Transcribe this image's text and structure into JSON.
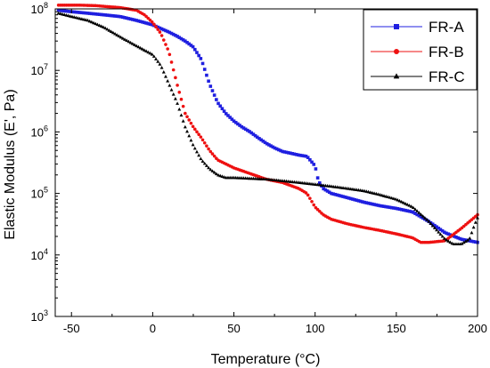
{
  "chart_data": {
    "type": "scatter",
    "xlabel": "Temperature (°C)",
    "ylabel": "Elastic Modulus (E', Pa)",
    "xlim": [
      -60,
      200
    ],
    "ylim": [
      1000,
      100000000
    ],
    "yscale": "log",
    "x_ticks": [
      -50,
      0,
      50,
      100,
      150,
      200
    ],
    "x_tick_labels": [
      "-50",
      "0",
      "50",
      "100",
      "150",
      "200"
    ],
    "y_ticks": [
      1000,
      10000,
      100000,
      1000000,
      10000000,
      100000000
    ],
    "y_tick_labels": [
      {
        "base": "10",
        "exp": "3"
      },
      {
        "base": "10",
        "exp": "4"
      },
      {
        "base": "10",
        "exp": "5"
      },
      {
        "base": "10",
        "exp": "6"
      },
      {
        "base": "10",
        "exp": "7"
      },
      {
        "base": "10",
        "exp": "8"
      }
    ],
    "grid": false,
    "legend_position": "top-right",
    "series": [
      {
        "name": "FR-A",
        "color": "#1f1fe0",
        "marker": "square",
        "points": [
          [
            -58,
            95000000
          ],
          [
            -50,
            90000000
          ],
          [
            -40,
            85000000
          ],
          [
            -30,
            80000000
          ],
          [
            -20,
            75000000
          ],
          [
            -10,
            65000000
          ],
          [
            0,
            55000000
          ],
          [
            5,
            48000000
          ],
          [
            10,
            42000000
          ],
          [
            15,
            36000000
          ],
          [
            20,
            30000000
          ],
          [
            25,
            24000000
          ],
          [
            30,
            15000000
          ],
          [
            35,
            6000000
          ],
          [
            40,
            3000000
          ],
          [
            45,
            2000000
          ],
          [
            50,
            1500000
          ],
          [
            55,
            1200000
          ],
          [
            60,
            1000000
          ],
          [
            65,
            800000
          ],
          [
            70,
            650000
          ],
          [
            75,
            550000
          ],
          [
            80,
            480000
          ],
          [
            85,
            450000
          ],
          [
            90,
            420000
          ],
          [
            95,
            400000
          ],
          [
            100,
            280000
          ],
          [
            102,
            160000
          ],
          [
            105,
            120000
          ],
          [
            110,
            100000
          ],
          [
            120,
            85000
          ],
          [
            130,
            72000
          ],
          [
            140,
            63000
          ],
          [
            150,
            57000
          ],
          [
            160,
            50000
          ],
          [
            170,
            35000
          ],
          [
            180,
            23000
          ],
          [
            190,
            18000
          ],
          [
            200,
            16000
          ]
        ]
      },
      {
        "name": "FR-B",
        "color": "#ee1111",
        "marker": "circle",
        "points": [
          [
            -58,
            115000000
          ],
          [
            -45,
            115000000
          ],
          [
            -35,
            113000000
          ],
          [
            -30,
            110000000
          ],
          [
            -20,
            105000000
          ],
          [
            -10,
            95000000
          ],
          [
            -5,
            80000000
          ],
          [
            0,
            60000000
          ],
          [
            5,
            40000000
          ],
          [
            10,
            20000000
          ],
          [
            15,
            6000000
          ],
          [
            20,
            2000000
          ],
          [
            25,
            1200000
          ],
          [
            30,
            800000
          ],
          [
            35,
            500000
          ],
          [
            40,
            350000
          ],
          [
            50,
            260000
          ],
          [
            60,
            210000
          ],
          [
            70,
            170000
          ],
          [
            80,
            150000
          ],
          [
            90,
            120000
          ],
          [
            95,
            100000
          ],
          [
            100,
            60000
          ],
          [
            105,
            45000
          ],
          [
            110,
            38000
          ],
          [
            120,
            32000
          ],
          [
            130,
            28000
          ],
          [
            140,
            25000
          ],
          [
            150,
            22000
          ],
          [
            160,
            19000
          ],
          [
            165,
            16000
          ],
          [
            170,
            16000
          ],
          [
            180,
            17000
          ],
          [
            190,
            27000
          ],
          [
            200,
            45000
          ]
        ]
      },
      {
        "name": "FR-C",
        "color": "#000000",
        "marker": "triangle",
        "points": [
          [
            -58,
            85000000
          ],
          [
            -50,
            75000000
          ],
          [
            -40,
            65000000
          ],
          [
            -30,
            50000000
          ],
          [
            -20,
            35000000
          ],
          [
            -10,
            25000000
          ],
          [
            0,
            18000000
          ],
          [
            5,
            12000000
          ],
          [
            10,
            6000000
          ],
          [
            15,
            3000000
          ],
          [
            20,
            1200000
          ],
          [
            25,
            600000
          ],
          [
            30,
            350000
          ],
          [
            35,
            250000
          ],
          [
            40,
            200000
          ],
          [
            45,
            180000
          ],
          [
            50,
            180000
          ],
          [
            60,
            175000
          ],
          [
            70,
            170000
          ],
          [
            80,
            160000
          ],
          [
            90,
            150000
          ],
          [
            100,
            140000
          ],
          [
            110,
            130000
          ],
          [
            120,
            120000
          ],
          [
            130,
            110000
          ],
          [
            140,
            95000
          ],
          [
            150,
            80000
          ],
          [
            160,
            60000
          ],
          [
            170,
            35000
          ],
          [
            175,
            25000
          ],
          [
            180,
            18000
          ],
          [
            185,
            15000
          ],
          [
            190,
            15000
          ],
          [
            195,
            18000
          ],
          [
            198,
            30000
          ],
          [
            200,
            40000
          ]
        ]
      }
    ]
  }
}
